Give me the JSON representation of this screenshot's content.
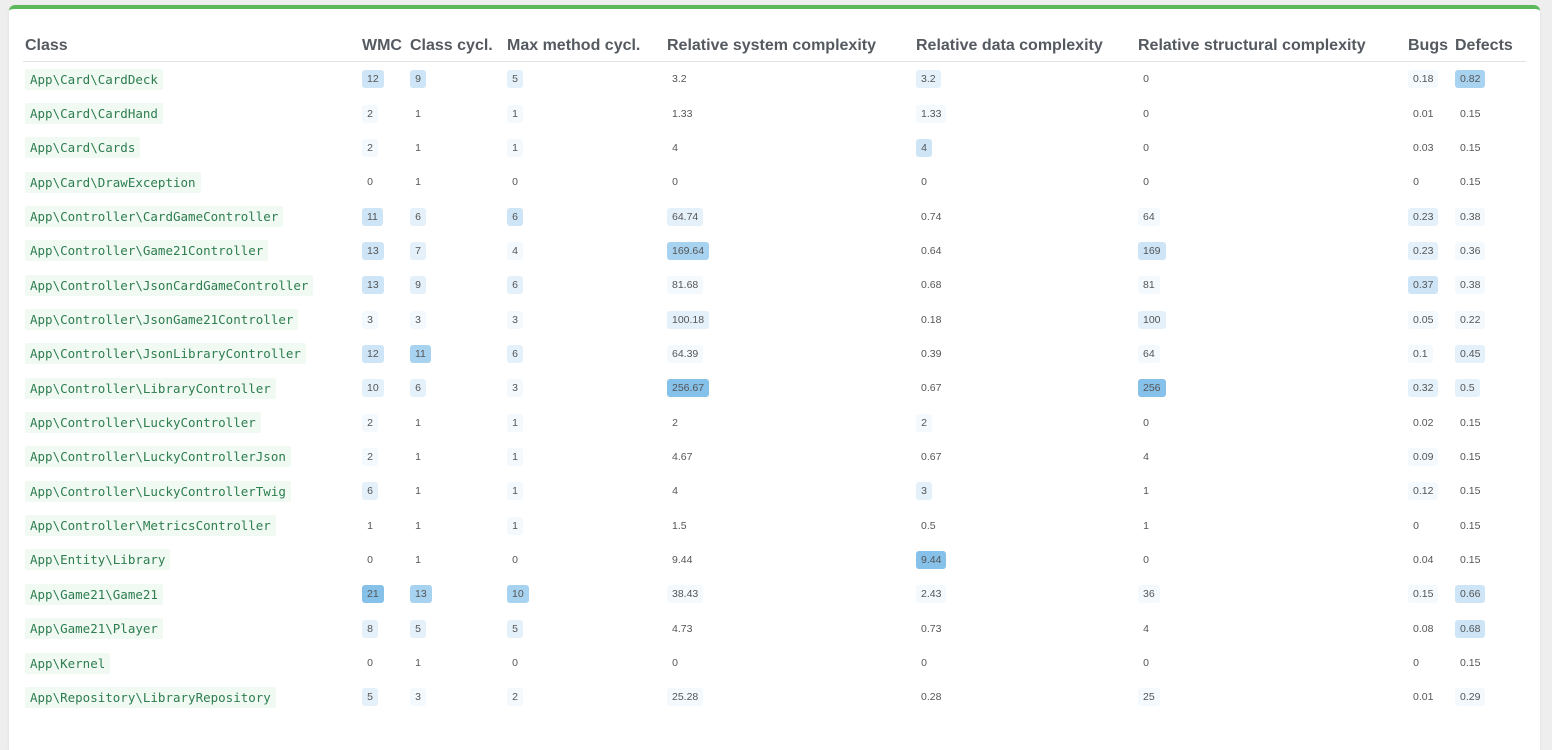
{
  "headers": [
    "Class",
    "WMC",
    "Class cycl.",
    "Max method cycl.",
    "Relative system complexity",
    "Relative data complexity",
    "Relative structural complexity",
    "Bugs",
    "Defects"
  ],
  "rows": [
    {
      "name": "App\\Card\\CardDeck",
      "c": [
        [
          "12",
          3
        ],
        [
          "9",
          3
        ],
        [
          "5",
          2
        ],
        [
          "3.2",
          0
        ],
        [
          "3.2",
          2
        ],
        [
          "0",
          0
        ],
        [
          "0.18",
          1
        ],
        [
          "0.82",
          4
        ]
      ]
    },
    {
      "name": "App\\Card\\CardHand",
      "c": [
        [
          "2",
          1
        ],
        [
          "1",
          0
        ],
        [
          "1",
          1
        ],
        [
          "1.33",
          0
        ],
        [
          "1.33",
          1
        ],
        [
          "0",
          0
        ],
        [
          "0.01",
          0
        ],
        [
          "0.15",
          0
        ]
      ]
    },
    {
      "name": "App\\Card\\Cards",
      "c": [
        [
          "2",
          1
        ],
        [
          "1",
          0
        ],
        [
          "1",
          1
        ],
        [
          "4",
          0
        ],
        [
          "4",
          3
        ],
        [
          "0",
          0
        ],
        [
          "0.03",
          0
        ],
        [
          "0.15",
          0
        ]
      ]
    },
    {
      "name": "App\\Card\\DrawException",
      "c": [
        [
          "0",
          0
        ],
        [
          "1",
          0
        ],
        [
          "0",
          0
        ],
        [
          "0",
          0
        ],
        [
          "0",
          0
        ],
        [
          "0",
          0
        ],
        [
          "0",
          0
        ],
        [
          "0.15",
          0
        ]
      ]
    },
    {
      "name": "App\\Controller\\CardGameController",
      "c": [
        [
          "11",
          3
        ],
        [
          "6",
          2
        ],
        [
          "6",
          3
        ],
        [
          "64.74",
          2
        ],
        [
          "0.74",
          0
        ],
        [
          "64",
          1
        ],
        [
          "0.23",
          2
        ],
        [
          "0.38",
          1
        ]
      ]
    },
    {
      "name": "App\\Controller\\Game21Controller",
      "c": [
        [
          "13",
          3
        ],
        [
          "7",
          2
        ],
        [
          "4",
          1
        ],
        [
          "169.64",
          4
        ],
        [
          "0.64",
          0
        ],
        [
          "169",
          3
        ],
        [
          "0.23",
          2
        ],
        [
          "0.36",
          1
        ]
      ]
    },
    {
      "name": "App\\Controller\\JsonCardGameController",
      "c": [
        [
          "13",
          3
        ],
        [
          "9",
          2
        ],
        [
          "6",
          2
        ],
        [
          "81.68",
          1
        ],
        [
          "0.68",
          0
        ],
        [
          "81",
          1
        ],
        [
          "0.37",
          3
        ],
        [
          "0.38",
          1
        ]
      ]
    },
    {
      "name": "App\\Controller\\JsonGame21Controller",
      "c": [
        [
          "3",
          1
        ],
        [
          "3",
          1
        ],
        [
          "3",
          1
        ],
        [
          "100.18",
          2
        ],
        [
          "0.18",
          0
        ],
        [
          "100",
          2
        ],
        [
          "0.05",
          1
        ],
        [
          "0.22",
          1
        ]
      ]
    },
    {
      "name": "App\\Controller\\JsonLibraryController",
      "c": [
        [
          "12",
          3
        ],
        [
          "11",
          4
        ],
        [
          "6",
          2
        ],
        [
          "64.39",
          1
        ],
        [
          "0.39",
          0
        ],
        [
          "64",
          1
        ],
        [
          "0.1",
          1
        ],
        [
          "0.45",
          2
        ]
      ]
    },
    {
      "name": "App\\Controller\\LibraryController",
      "c": [
        [
          "10",
          2
        ],
        [
          "6",
          2
        ],
        [
          "3",
          1
        ],
        [
          "256.67",
          5
        ],
        [
          "0.67",
          0
        ],
        [
          "256",
          5
        ],
        [
          "0.32",
          2
        ],
        [
          "0.5",
          2
        ]
      ]
    },
    {
      "name": "App\\Controller\\LuckyController",
      "c": [
        [
          "2",
          1
        ],
        [
          "1",
          0
        ],
        [
          "1",
          1
        ],
        [
          "2",
          0
        ],
        [
          "2",
          1
        ],
        [
          "0",
          0
        ],
        [
          "0.02",
          0
        ],
        [
          "0.15",
          0
        ]
      ]
    },
    {
      "name": "App\\Controller\\LuckyControllerJson",
      "c": [
        [
          "2",
          1
        ],
        [
          "1",
          0
        ],
        [
          "1",
          1
        ],
        [
          "4.67",
          0
        ],
        [
          "0.67",
          0
        ],
        [
          "4",
          0
        ],
        [
          "0.09",
          1
        ],
        [
          "0.15",
          0
        ]
      ]
    },
    {
      "name": "App\\Controller\\LuckyControllerTwig",
      "c": [
        [
          "6",
          2
        ],
        [
          "1",
          0
        ],
        [
          "1",
          1
        ],
        [
          "4",
          0
        ],
        [
          "3",
          2
        ],
        [
          "1",
          0
        ],
        [
          "0.12",
          1
        ],
        [
          "0.15",
          0
        ]
      ]
    },
    {
      "name": "App\\Controller\\MetricsController",
      "c": [
        [
          "1",
          0
        ],
        [
          "1",
          0
        ],
        [
          "1",
          1
        ],
        [
          "1.5",
          0
        ],
        [
          "0.5",
          0
        ],
        [
          "1",
          0
        ],
        [
          "0",
          0
        ],
        [
          "0.15",
          0
        ]
      ]
    },
    {
      "name": "App\\Entity\\Library",
      "c": [
        [
          "0",
          0
        ],
        [
          "1",
          0
        ],
        [
          "0",
          0
        ],
        [
          "9.44",
          0
        ],
        [
          "9.44",
          5
        ],
        [
          "0",
          0
        ],
        [
          "0.04",
          0
        ],
        [
          "0.15",
          0
        ]
      ]
    },
    {
      "name": "App\\Game21\\Game21",
      "c": [
        [
          "21",
          5
        ],
        [
          "13",
          4
        ],
        [
          "10",
          4
        ],
        [
          "38.43",
          1
        ],
        [
          "2.43",
          1
        ],
        [
          "36",
          1
        ],
        [
          "0.15",
          1
        ],
        [
          "0.66",
          3
        ]
      ]
    },
    {
      "name": "App\\Game21\\Player",
      "c": [
        [
          "8",
          2
        ],
        [
          "5",
          2
        ],
        [
          "5",
          2
        ],
        [
          "4.73",
          0
        ],
        [
          "0.73",
          0
        ],
        [
          "4",
          0
        ],
        [
          "0.08",
          0
        ],
        [
          "0.68",
          3
        ]
      ]
    },
    {
      "name": "App\\Kernel",
      "c": [
        [
          "0",
          0
        ],
        [
          "1",
          0
        ],
        [
          "0",
          0
        ],
        [
          "0",
          0
        ],
        [
          "0",
          0
        ],
        [
          "0",
          0
        ],
        [
          "0",
          0
        ],
        [
          "0.15",
          0
        ]
      ]
    },
    {
      "name": "App\\Repository\\LibraryRepository",
      "c": [
        [
          "5",
          2
        ],
        [
          "3",
          1
        ],
        [
          "2",
          1
        ],
        [
          "25.28",
          1
        ],
        [
          "0.28",
          0
        ],
        [
          "25",
          1
        ],
        [
          "0.01",
          0
        ],
        [
          "0.29",
          1
        ]
      ]
    }
  ]
}
